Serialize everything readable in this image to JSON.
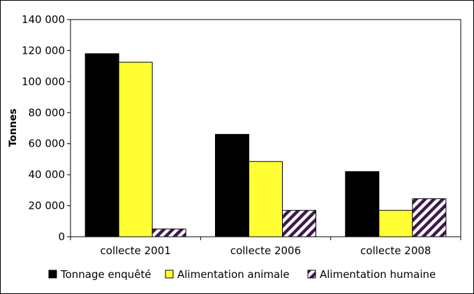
{
  "chart_data": {
    "type": "bar",
    "title": "",
    "xlabel": "",
    "ylabel": "Tonnes",
    "ylim": [
      0,
      140000
    ],
    "yticks": [
      0,
      20000,
      40000,
      60000,
      80000,
      100000,
      120000,
      140000
    ],
    "ytick_labels": [
      "0",
      "20 000",
      "40 000",
      "60 000",
      "80 000",
      "100 000",
      "120 000",
      "140 000"
    ],
    "categories": [
      "collecte 2001",
      "collecte 2006",
      "collecte 2008"
    ],
    "series": [
      {
        "name": "Tonnage enquêté",
        "values": [
          118000,
          66000,
          42000
        ],
        "color": "#000000",
        "pattern": "solid"
      },
      {
        "name": "Alimentation animale",
        "values": [
          112500,
          48500,
          17000
        ],
        "color": "#ffff33",
        "pattern": "solid"
      },
      {
        "name": "Alimentation humaine",
        "values": [
          5000,
          17000,
          24500
        ],
        "color": "#3d1a4d",
        "pattern": "hatch"
      }
    ],
    "grid": false,
    "legend_position": "bottom"
  }
}
